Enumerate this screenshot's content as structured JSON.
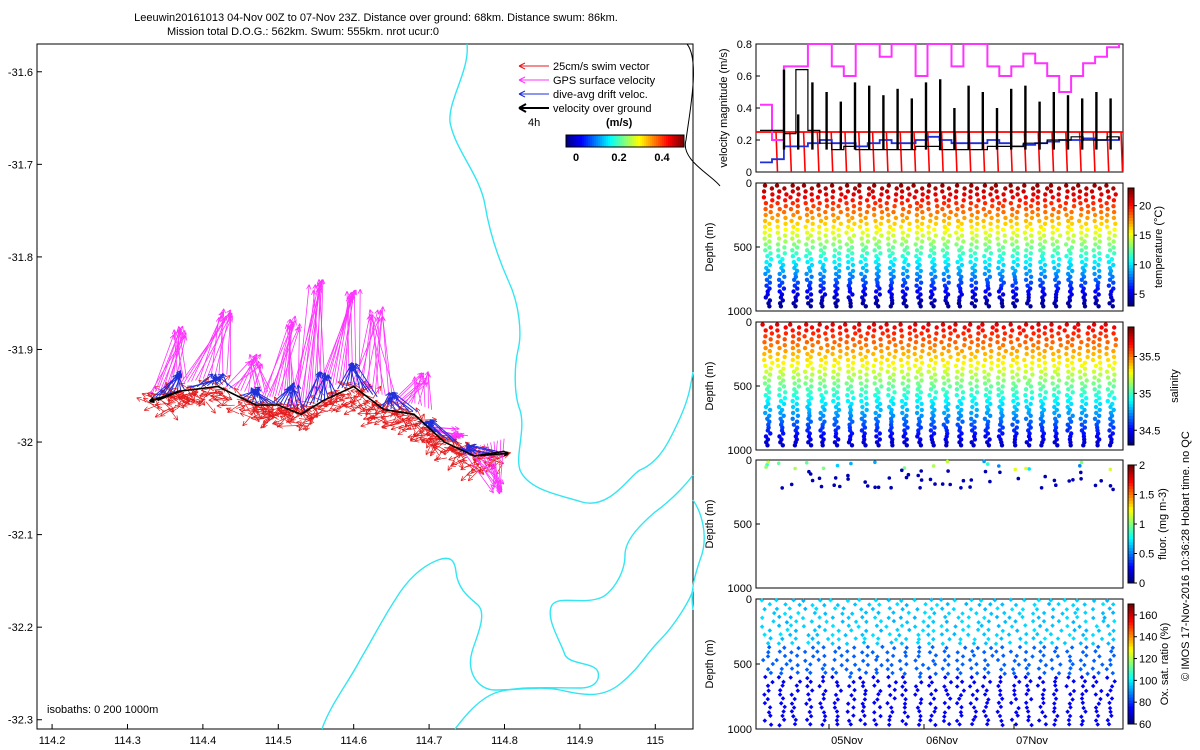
{
  "title": {
    "line1": "Leeuwin20161013 04-Nov 00Z to 07-Nov 23Z. Distance over ground: 68km. Distance swum: 86km.",
    "line2": "Mission total D.O.G.: 562km. Swum: 555km. nrot ucur:0"
  },
  "watermark": "© IMOS 17-Nov-2016 10:36:28 Hobart time. no QC",
  "chart_data": [
    {
      "id": "map",
      "type": "map",
      "xlim": [
        114.18,
        115.05
      ],
      "ylim": [
        -32.31,
        -31.57
      ],
      "x_ticks": [
        "114.2",
        "114.3",
        "114.4",
        "114.5",
        "114.6",
        "114.7",
        "114.8",
        "114.9",
        "115"
      ],
      "y_ticks": [
        "-31.6",
        "-31.7",
        "-31.8",
        "-31.9",
        "-32",
        "-32.1",
        "-32.2",
        "-32.3"
      ],
      "legend": [
        {
          "label": "25cm/s swim vector",
          "color": "#e41a1c"
        },
        {
          "label": "GPS surface velocity",
          "color": "#ff33ff"
        },
        {
          "label": "dive-avg drift veloc.",
          "color": "#1f2fd8"
        },
        {
          "label": "velocity over ground",
          "color": "#000000"
        }
      ],
      "scale_label": "4h",
      "colorbar": {
        "unit": "(m/s)",
        "ticks": [
          "0",
          "0.2",
          "0.4"
        ],
        "range": [
          -0.02,
          0.46
        ]
      },
      "isobaths_label": "isobaths: 0   200   1000m",
      "track": [
        [
          114.34,
          -31.955
        ],
        [
          114.37,
          -31.945
        ],
        [
          114.42,
          -31.94
        ],
        [
          114.47,
          -31.96
        ],
        [
          114.5,
          -31.96
        ],
        [
          114.53,
          -31.97
        ],
        [
          114.56,
          -31.955
        ],
        [
          114.6,
          -31.94
        ],
        [
          114.64,
          -31.965
        ],
        [
          114.68,
          -31.97
        ],
        [
          114.72,
          -32.0
        ],
        [
          114.76,
          -32.015
        ],
        [
          114.8,
          -32.01
        ]
      ],
      "gps_ends": [
        [
          114.37,
          -31.88
        ],
        [
          114.43,
          -31.86
        ],
        [
          114.47,
          -31.91
        ],
        [
          114.52,
          -31.87
        ],
        [
          114.55,
          -31.83
        ],
        [
          114.6,
          -31.84
        ],
        [
          114.63,
          -31.86
        ],
        [
          114.69,
          -31.93
        ],
        [
          114.74,
          -31.99
        ],
        [
          114.79,
          -32.05
        ]
      ],
      "drift_ends": [
        [
          114.37,
          -31.925
        ],
        [
          114.42,
          -31.93
        ],
        [
          114.47,
          -31.945
        ],
        [
          114.52,
          -31.94
        ],
        [
          114.56,
          -31.925
        ],
        [
          114.6,
          -31.915
        ],
        [
          114.65,
          -31.95
        ],
        [
          114.7,
          -31.98
        ],
        [
          114.75,
          -32.005
        ]
      ]
    },
    {
      "id": "velocity",
      "type": "line",
      "ylabel": "velocity magnitude (m/s)",
      "ylim": [
        0,
        0.8
      ],
      "y_ticks": [
        "0",
        "0.2",
        "0.4",
        "0.6",
        "0.8"
      ],
      "x_ticks": [
        "05Nov",
        "06Nov",
        "07Nov"
      ],
      "series": [
        {
          "name": "swim",
          "color": "#ff0000",
          "level": 0.25
        },
        {
          "name": "gps",
          "color": "#ff33ff",
          "values": [
            0.42,
            0.2,
            0.66,
            0.66,
            0.8,
            0.8,
            0.66,
            0.6,
            0.8,
            0.8,
            0.72,
            0.8,
            0.8,
            0.6,
            0.8,
            0.8,
            0.66,
            0.8,
            0.8,
            0.66,
            0.6,
            0.66,
            0.74,
            0.68,
            0.6,
            0.5,
            0.6,
            0.68,
            0.72,
            0.78,
            0.8
          ]
        },
        {
          "name": "drift",
          "color": "#1f2fd8",
          "values": [
            0.06,
            0.08,
            0.16,
            0.16,
            0.18,
            0.2,
            0.18,
            0.18,
            0.16,
            0.18,
            0.2,
            0.18,
            0.18,
            0.2,
            0.22,
            0.2,
            0.18,
            0.18,
            0.18,
            0.2,
            0.18,
            0.16,
            0.17,
            0.18,
            0.19,
            0.2,
            0.2,
            0.21,
            0.2,
            0.2,
            0.22
          ]
        },
        {
          "name": "ground",
          "color": "#000000",
          "values": [
            0.26,
            0.26,
            0.24,
            0.64,
            0.26,
            0.18,
            0.14,
            0.16,
            0.14,
            0.14,
            0.14,
            0.14,
            0.14,
            0.16,
            0.16,
            0.14,
            0.14,
            0.14,
            0.14,
            0.16,
            0.16,
            0.16,
            0.18,
            0.18,
            0.2,
            0.2,
            0.22,
            0.2,
            0.2,
            0.22,
            0.2
          ]
        }
      ]
    },
    {
      "id": "temperature",
      "type": "scatter",
      "ylabel": "Depth (m)",
      "ylim": [
        1000,
        0
      ],
      "y_ticks": [
        "0",
        "500",
        "1000"
      ],
      "colorbar": {
        "label": "temperature (°C)",
        "ticks": [
          "5",
          "10",
          "15",
          "20"
        ],
        "range": [
          3,
          23
        ]
      },
      "profile": "temperature"
    },
    {
      "id": "salinity",
      "type": "scatter",
      "ylabel": "Depth (m)",
      "ylim": [
        1000,
        0
      ],
      "y_ticks": [
        "0",
        "500",
        "1000"
      ],
      "colorbar": {
        "label": "salinity",
        "ticks": [
          "34.5",
          "35",
          "35.5"
        ],
        "range": [
          34.3,
          35.9
        ]
      },
      "profile": "salinity"
    },
    {
      "id": "fluorescence",
      "type": "scatter",
      "ylabel": "Depth (m)",
      "ylim": [
        1000,
        0
      ],
      "y_ticks": [
        "0",
        "500",
        "1000"
      ],
      "colorbar": {
        "label": "fluor. (mg m-3)",
        "ticks": [
          "0",
          "0.5",
          "1",
          "1.5",
          "2"
        ],
        "range": [
          0,
          2
        ]
      },
      "profile": "fluorescence"
    },
    {
      "id": "oxygen",
      "type": "scatter",
      "ylabel": "Depth (m)",
      "ylim": [
        1000,
        0
      ],
      "y_ticks": [
        "0",
        "500",
        "1000"
      ],
      "x_ticks": [
        "05Nov",
        "06Nov",
        "07Nov"
      ],
      "colorbar": {
        "label": "Ox. sat. ratio (%)",
        "ticks": [
          "60",
          "80",
          "100",
          "120",
          "140",
          "160"
        ],
        "range": [
          60,
          170
        ]
      },
      "profile": "oxygen"
    }
  ]
}
